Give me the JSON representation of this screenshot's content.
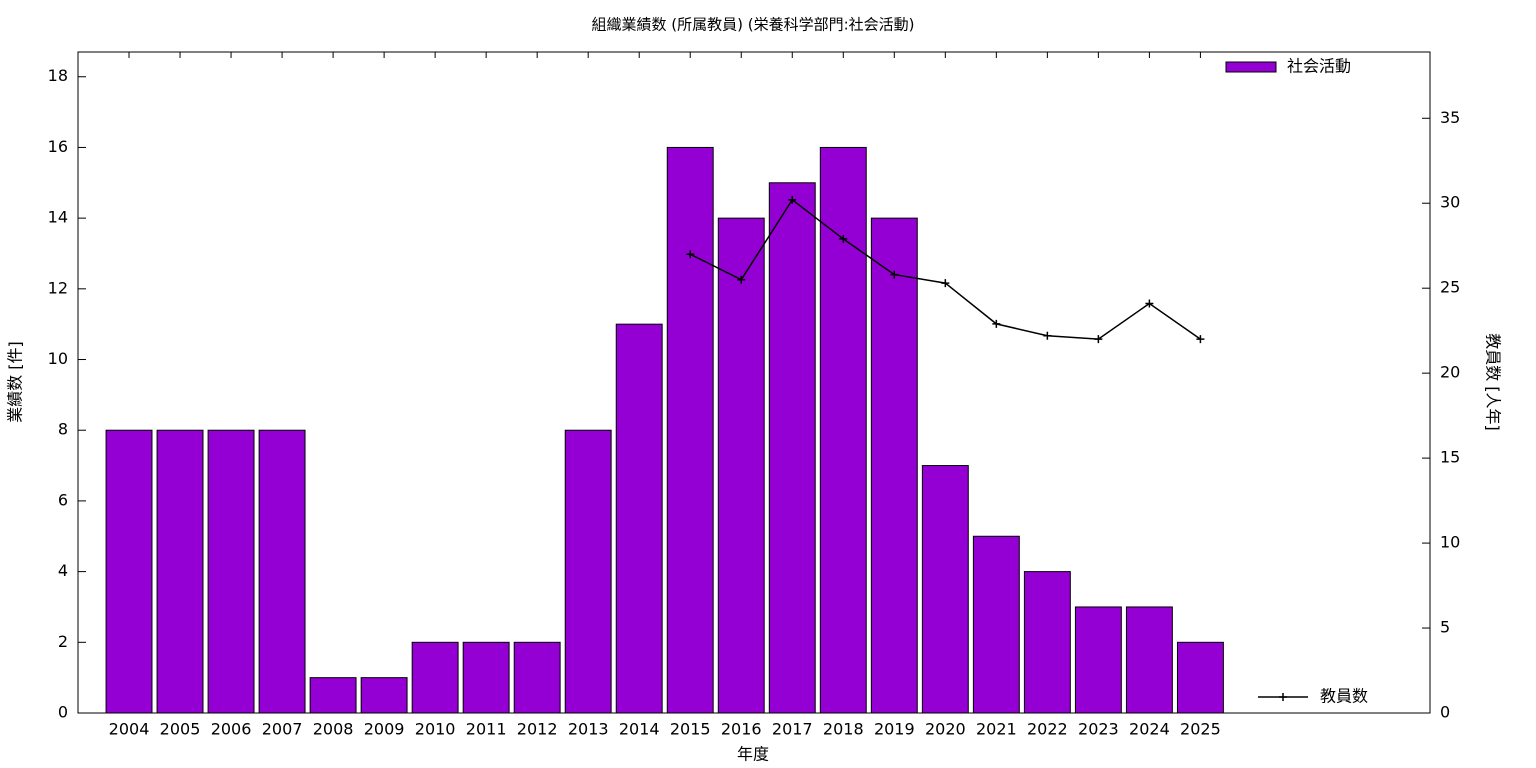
{
  "chart_data": {
    "type": "bar_line",
    "title": "組織業績数 (所属教員) (栄養科学部門:社会活動)",
    "xlabel": "年度",
    "ylabel": "業績数 [件]",
    "y2label": "教員数 [人年]",
    "categories": [
      "2004",
      "2005",
      "2006",
      "2007",
      "2008",
      "2009",
      "2010",
      "2011",
      "2012",
      "2013",
      "2014",
      "2015",
      "2016",
      "2017",
      "2018",
      "2019",
      "2020",
      "2021",
      "2022",
      "2023",
      "2024",
      "2025"
    ],
    "series": [
      {
        "name": "社会活動",
        "type": "bar",
        "color": "#9400d3",
        "values": [
          8,
          8,
          8,
          8,
          1,
          1,
          2,
          2,
          2,
          8,
          11,
          16,
          14,
          15,
          16,
          14,
          7,
          5,
          4,
          3,
          3,
          2
        ]
      },
      {
        "name": "教員数",
        "type": "line",
        "axis": "y2",
        "color": "#000000",
        "values": [
          null,
          null,
          null,
          null,
          null,
          null,
          null,
          null,
          null,
          null,
          null,
          27.0,
          25.5,
          30.2,
          27.9,
          25.8,
          25.3,
          22.9,
          22.2,
          22.0,
          24.1,
          22.0
        ]
      }
    ],
    "ylim": [
      0,
      18.7
    ],
    "yticks": [
      0,
      2,
      4,
      6,
      8,
      10,
      12,
      14,
      16,
      18
    ],
    "y2lim": [
      0,
      38.9
    ],
    "y2ticks": [
      0,
      5,
      10,
      15,
      20,
      25,
      30,
      35
    ]
  }
}
